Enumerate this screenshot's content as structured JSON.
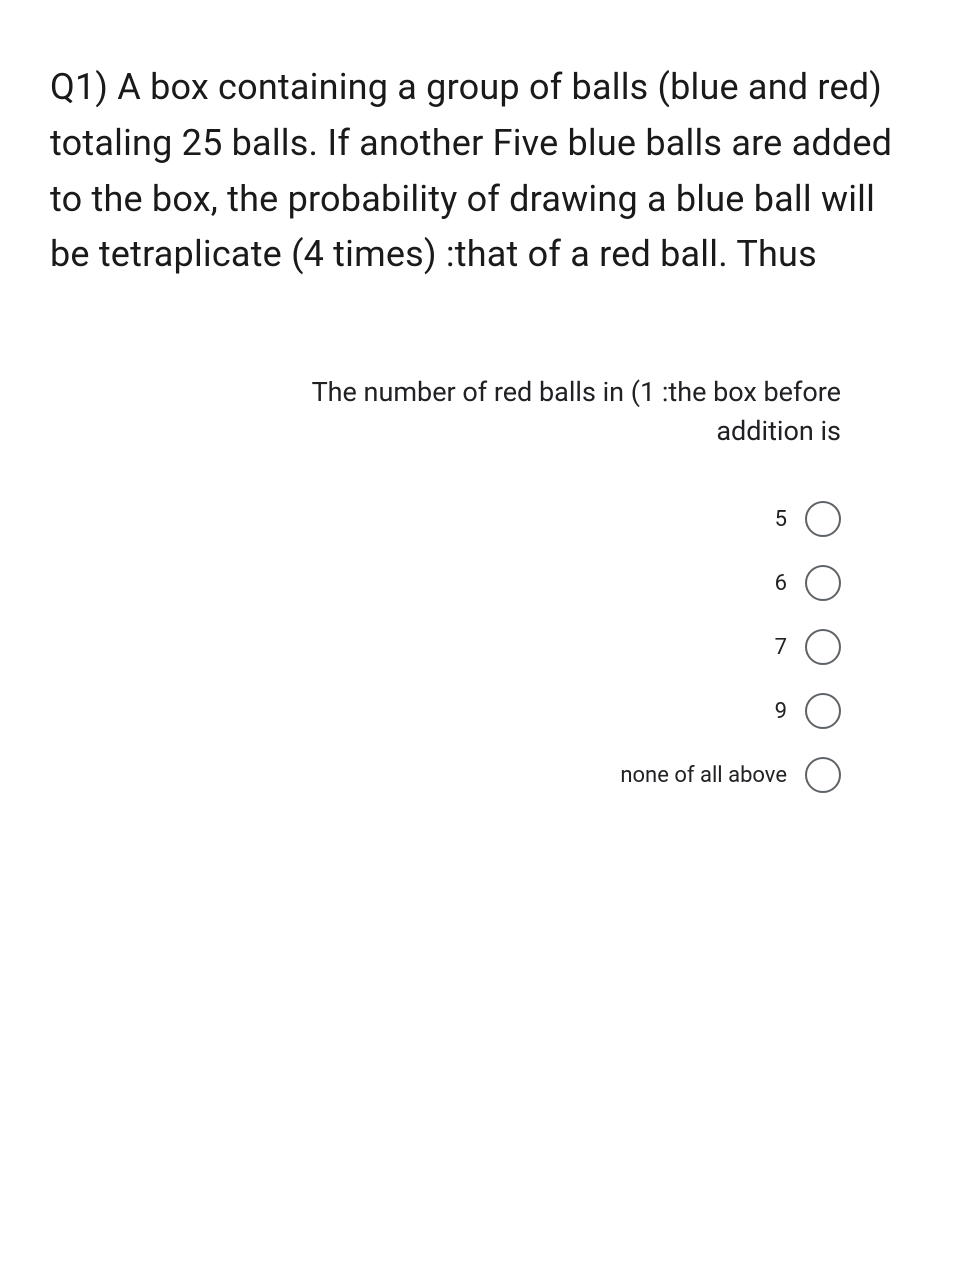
{
  "question": {
    "full_text": "Q1) A box containing a group of balls (blue and red) totaling 25 balls. If another Five blue balls are added to the box, the probability of drawing a blue ball will be tetraplicate (4 times) :that of a red ball. Thus"
  },
  "sub_question": {
    "text": "The number of red balls in (1 :the box before addition is"
  },
  "options": [
    {
      "label": "5"
    },
    {
      "label": "6"
    },
    {
      "label": "7"
    },
    {
      "label": "9"
    },
    {
      "label": "none of all above"
    }
  ],
  "styling": {
    "background_color": "#ffffff",
    "text_color": "#202124",
    "radio_border_color": "#5f6368",
    "question_fontsize": 36,
    "subquestion_fontsize": 27,
    "option_fontsize": 22,
    "radio_size": 36
  }
}
